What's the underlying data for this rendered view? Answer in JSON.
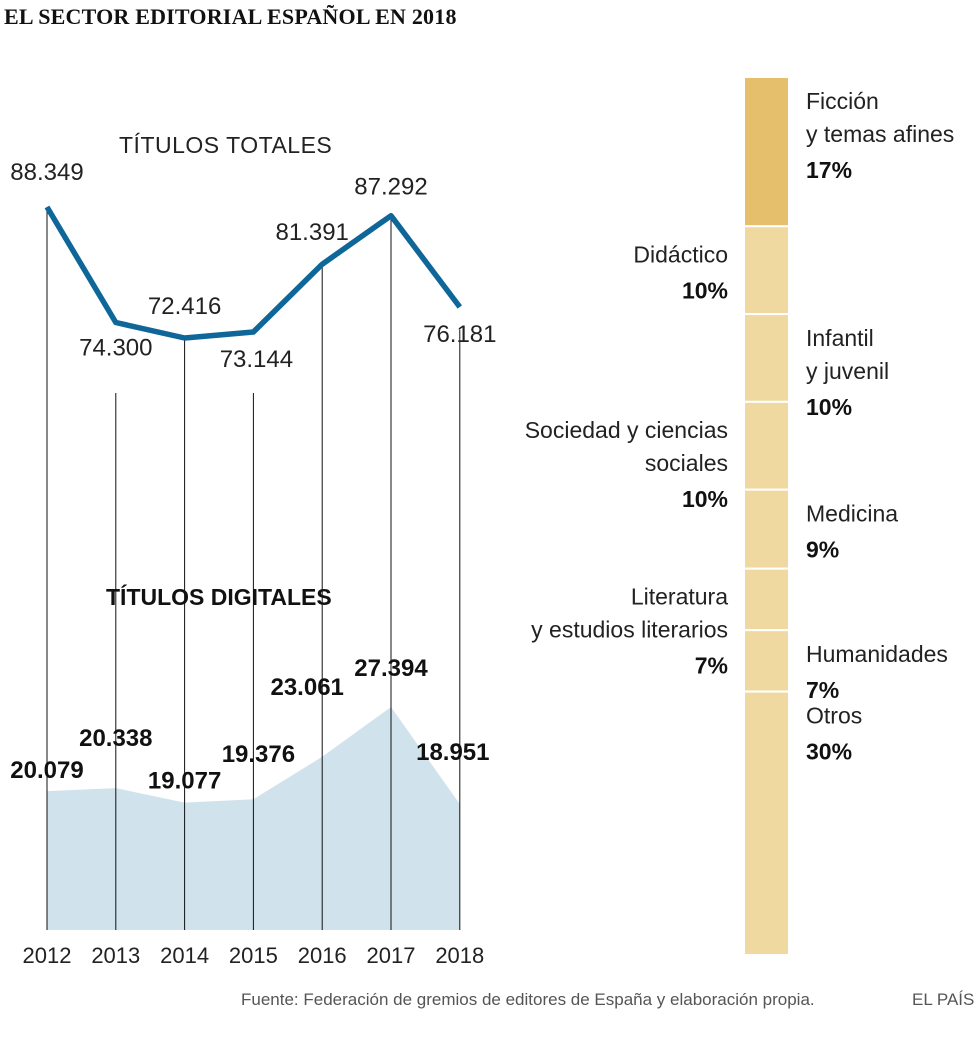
{
  "header": {
    "title": "EL SECTOR EDITORIAL ESPAÑOL EN 2018"
  },
  "footer": {
    "source": "Fuente: Federación de gremios de editores de España y elaboración propia.",
    "brand": "EL PAÍS"
  },
  "colors": {
    "line": "#0f6698",
    "area": "#d0e3ec",
    "bar_highlight": "#e6bf6c",
    "bar_default": "#f0d9a1"
  },
  "chart_data": [
    {
      "type": "line",
      "title": "TÍTULOS TOTALES",
      "categories": [
        "2012",
        "2013",
        "2014",
        "2015",
        "2016",
        "2017",
        "2018"
      ],
      "series": [
        {
          "values": [
            88349,
            74300,
            72416,
            73144,
            81391,
            87292,
            76181
          ],
          "labels": [
            "88.349",
            "74.300",
            "72.416",
            "73.144",
            "81.391",
            "87.292",
            "76.181"
          ]
        }
      ]
    },
    {
      "type": "area",
      "title": "TÍTULOS DIGITALES",
      "categories": [
        "2012",
        "2013",
        "2014",
        "2015",
        "2016",
        "2017",
        "2018"
      ],
      "series": [
        {
          "values": [
            20079,
            20338,
            19077,
            19376,
            23061,
            27394,
            18951
          ],
          "labels": [
            "20.079",
            "20.338",
            "19.077",
            "19.376",
            "23.061",
            "27.394",
            "18.951"
          ]
        }
      ]
    },
    {
      "type": "bar",
      "stacked": true,
      "categories": [
        "Ficción\ny temas afines",
        "Didáctico",
        "Infantil\ny juvenil",
        "Sociedad y ciencias\nsociales",
        "Medicina",
        "Literatura\ny estudios literarios",
        "Humanidades",
        "Otros"
      ],
      "values": [
        17,
        10,
        10,
        10,
        9,
        7,
        7,
        30
      ],
      "labels": [
        "17%",
        "10%",
        "10%",
        "10%",
        "9%",
        "7%",
        "7%",
        "30%"
      ],
      "label_side": [
        "right",
        "left",
        "right",
        "left",
        "right",
        "left",
        "right",
        "right"
      ],
      "highlight": [
        "Ficción\ny temas afines"
      ]
    }
  ]
}
